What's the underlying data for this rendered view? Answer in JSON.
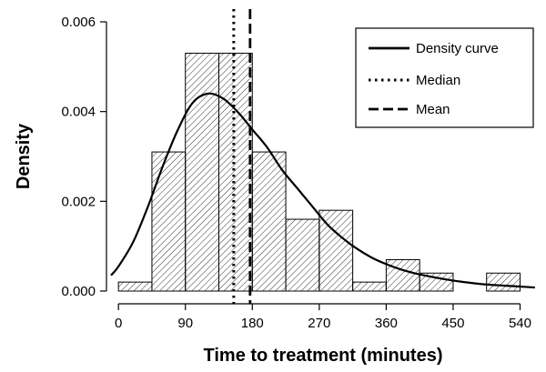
{
  "chart_data": {
    "type": "bar",
    "xlabel": "Time to treatment (minutes)",
    "ylabel": "Density",
    "xlim": [
      -10,
      570
    ],
    "ylim": [
      0,
      0.006
    ],
    "x_ticks": [
      0,
      90,
      180,
      270,
      360,
      450,
      540
    ],
    "x_tick_labels": [
      "0",
      "90",
      "180",
      "270",
      "360",
      "450",
      "540"
    ],
    "y_ticks": [
      0,
      0.002,
      0.004,
      0.006
    ],
    "y_tick_labels": [
      "0.000",
      "0.002",
      "0.004",
      "0.006"
    ],
    "histogram": {
      "bin_edges": [
        0,
        45,
        90,
        135,
        180,
        225,
        270,
        315,
        360,
        405,
        450,
        495,
        540
      ],
      "density": [
        0.0002,
        0.0031,
        0.0053,
        0.0053,
        0.0031,
        0.0016,
        0.0018,
        0.0002,
        0.0007,
        0.0004,
        0.0,
        0.0004
      ],
      "pattern": "diagonal-hatch"
    },
    "density_curve": {
      "name": "Density curve",
      "x": [
        -10,
        0,
        20,
        40,
        60,
        80,
        100,
        120,
        140,
        160,
        180,
        200,
        220,
        240,
        260,
        280,
        300,
        320,
        340,
        360,
        380,
        400,
        420,
        440,
        460,
        480,
        500,
        520,
        540,
        560
      ],
      "y": [
        0.00035,
        0.00055,
        0.0011,
        0.0019,
        0.0028,
        0.0036,
        0.0042,
        0.0044,
        0.0043,
        0.004,
        0.0036,
        0.0032,
        0.0027,
        0.0023,
        0.0019,
        0.0015,
        0.0012,
        0.00095,
        0.00075,
        0.0006,
        0.00048,
        0.00039,
        0.00032,
        0.00026,
        0.00021,
        0.00017,
        0.00014,
        0.00012,
        0.0001,
        8e-05
      ]
    },
    "median": {
      "name": "Median",
      "value": 155,
      "style": "dotted"
    },
    "mean": {
      "name": "Mean",
      "value": 177,
      "style": "dashed"
    },
    "legend": {
      "position": "top-right",
      "entries": [
        {
          "label": "Density curve",
          "style": "solid"
        },
        {
          "label": "Median",
          "style": "dotted"
        },
        {
          "label": "Mean",
          "style": "dashed"
        }
      ]
    },
    "colors": {
      "bars_fill": "#ffffff",
      "hatch": "#000000",
      "line": "#000000"
    }
  }
}
